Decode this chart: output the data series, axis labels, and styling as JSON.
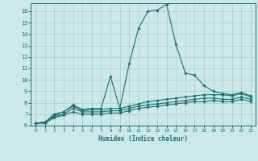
{
  "xlabel": "Humidex (Indice chaleur)",
  "background_color": "#cce8e8",
  "grid_color": "#aacccc",
  "line_color": "#1a7070",
  "xlim": [
    -0.5,
    23.5
  ],
  "ylim": [
    6,
    16.7
  ],
  "xticks": [
    0,
    1,
    2,
    3,
    4,
    5,
    6,
    7,
    8,
    9,
    10,
    11,
    12,
    13,
    14,
    15,
    16,
    17,
    18,
    19,
    20,
    21,
    22,
    23
  ],
  "yticks": [
    6,
    7,
    8,
    9,
    10,
    11,
    12,
    13,
    14,
    15,
    16
  ],
  "lines": [
    {
      "x": [
        0,
        1,
        2,
        3,
        4,
        5,
        6,
        7,
        8,
        9,
        10,
        11,
        12,
        13,
        14,
        15,
        16,
        17,
        18,
        19,
        20,
        21,
        22,
        23
      ],
      "y": [
        6.2,
        6.3,
        7.0,
        7.2,
        7.8,
        7.4,
        7.5,
        7.5,
        10.3,
        7.5,
        11.4,
        14.5,
        16.0,
        16.1,
        16.6,
        13.1,
        10.6,
        10.4,
        9.5,
        9.0,
        8.8,
        8.7,
        8.9,
        8.6
      ]
    },
    {
      "x": [
        0,
        1,
        2,
        3,
        4,
        5,
        6,
        7,
        8,
        9,
        10,
        11,
        12,
        13,
        14,
        15,
        16,
        17,
        18,
        19,
        20,
        21,
        22,
        23
      ],
      "y": [
        6.2,
        6.3,
        6.9,
        7.2,
        7.7,
        7.3,
        7.4,
        7.4,
        7.5,
        7.5,
        7.7,
        7.9,
        8.1,
        8.2,
        8.3,
        8.4,
        8.5,
        8.6,
        8.7,
        8.7,
        8.7,
        8.6,
        8.8,
        8.5
      ]
    },
    {
      "x": [
        0,
        1,
        2,
        3,
        4,
        5,
        6,
        7,
        8,
        9,
        10,
        11,
        12,
        13,
        14,
        15,
        16,
        17,
        18,
        19,
        20,
        21,
        22,
        23
      ],
      "y": [
        6.2,
        6.3,
        6.8,
        7.0,
        7.5,
        7.2,
        7.2,
        7.2,
        7.3,
        7.3,
        7.5,
        7.7,
        7.8,
        7.9,
        8.0,
        8.1,
        8.2,
        8.3,
        8.4,
        8.4,
        8.3,
        8.3,
        8.5,
        8.3
      ]
    },
    {
      "x": [
        0,
        1,
        2,
        3,
        4,
        5,
        6,
        7,
        8,
        9,
        10,
        11,
        12,
        13,
        14,
        15,
        16,
        17,
        18,
        19,
        20,
        21,
        22,
        23
      ],
      "y": [
        6.2,
        6.2,
        6.7,
        6.9,
        7.2,
        7.0,
        7.0,
        7.0,
        7.1,
        7.1,
        7.3,
        7.5,
        7.6,
        7.7,
        7.8,
        7.9,
        8.0,
        8.1,
        8.1,
        8.2,
        8.1,
        8.1,
        8.3,
        8.1
      ]
    }
  ]
}
